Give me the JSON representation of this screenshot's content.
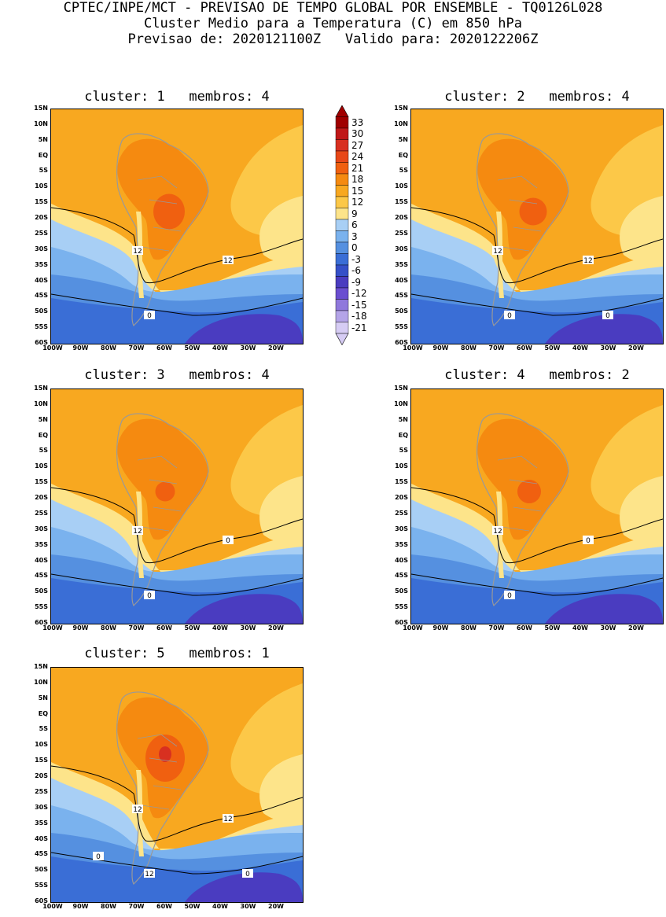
{
  "header": {
    "line1": "CPTEC/INPE/MCT - PREVISAO DE TEMPO GLOBAL POR ENSEMBLE - TQ0126L028",
    "line2": "Cluster Medio para a Temperatura (C) em 850 hPa",
    "line3": "Previsao de: 2020121100Z   Valido para: 2020122206Z"
  },
  "colorbar": {
    "levels": [
      "33",
      "30",
      "27",
      "24",
      "21",
      "18",
      "15",
      "12",
      "9",
      "6",
      "3",
      "0",
      "-3",
      "-6",
      "-9",
      "-12",
      "-15",
      "-18",
      "-21"
    ],
    "colors": [
      "#a00000",
      "#c01818",
      "#d83020",
      "#e84818",
      "#f06010",
      "#f58a10",
      "#f8a820",
      "#fcc848",
      "#fde48a",
      "#a8cff5",
      "#7ab2ee",
      "#5590e0",
      "#3a6ed6",
      "#3550c8",
      "#4a3cc0",
      "#6a4ed0",
      "#8f78dc",
      "#b4a4e8",
      "#d6ccf4"
    ]
  },
  "axes": {
    "lat_labels": [
      "15N",
      "10N",
      "5N",
      "EQ",
      "5S",
      "10S",
      "15S",
      "20S",
      "25S",
      "30S",
      "35S",
      "40S",
      "45S",
      "50S",
      "55S",
      "60S"
    ],
    "lon_labels": [
      "100W",
      "90W",
      "80W",
      "70W",
      "60W",
      "50W",
      "40W",
      "30W",
      "20W"
    ]
  },
  "panels": [
    {
      "title": "cluster: 1   membros: 4",
      "contour_labels": [
        "12",
        "12",
        "0"
      ]
    },
    {
      "title": "cluster: 2   membros: 4",
      "contour_labels": [
        "12",
        "12",
        "0",
        "0"
      ]
    },
    {
      "title": "cluster: 3   membros: 4",
      "contour_labels": [
        "12",
        "0",
        "0"
      ]
    },
    {
      "title": "cluster: 4   membros: 2",
      "contour_labels": [
        "12",
        "0",
        "0"
      ]
    },
    {
      "title": "cluster: 5   membros: 1",
      "contour_labels": [
        "12",
        "12",
        "12",
        "0",
        "0"
      ]
    }
  ]
}
